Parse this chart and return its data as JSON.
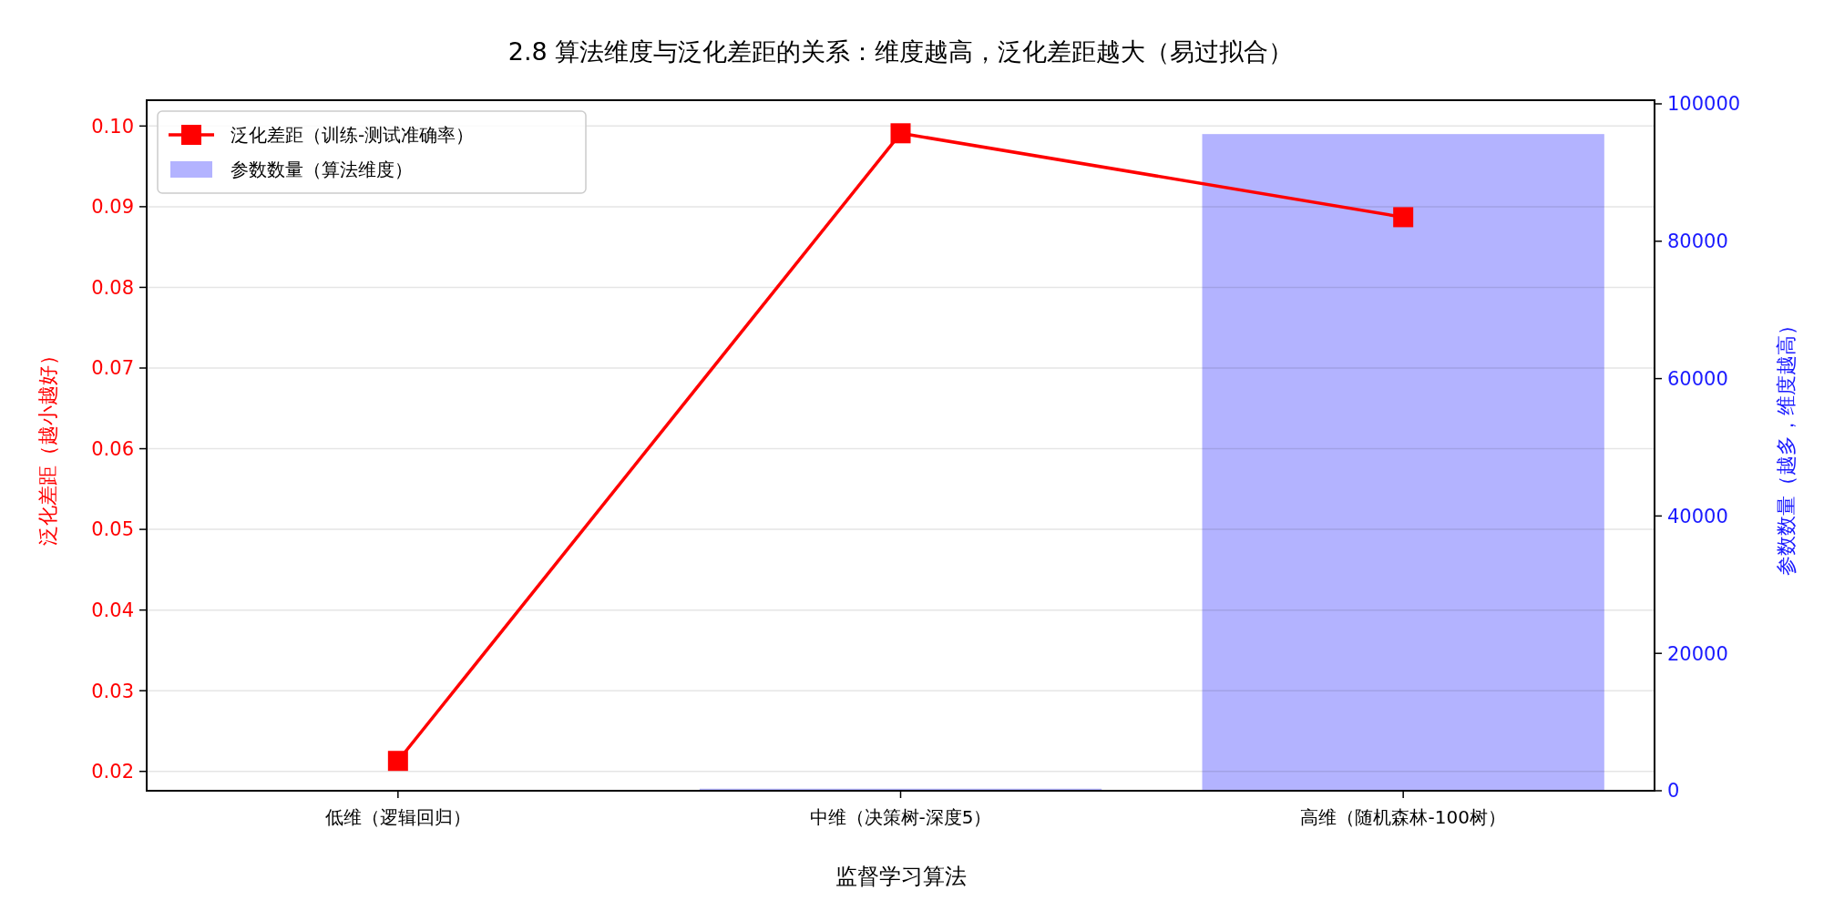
{
  "chart_data": {
    "type": "line",
    "title": "2.8 算法维度与泛化差距的关系：维度越高，泛化差距越大（易过拟合）",
    "xlabel": "监督学习算法",
    "ylabel": "泛化差距（越小越好）",
    "y2label": "参数数量（越多，维度越高）",
    "categories": [
      "低维（逻辑回归）",
      "中维（决策树-深度5）",
      "高维（随机森林-100树）"
    ],
    "series": [
      {
        "name": "泛化差距（训练-测试准确率）",
        "color": "#ff0000",
        "values": [
          0.0213,
          0.0991,
          0.0887
        ],
        "marker": "square"
      },
      {
        "name": "参数数量（算法维度）",
        "type": "bar",
        "axis": "y2",
        "color": "#b3b3ff",
        "values": [
          0,
          300,
          95600
        ]
      }
    ],
    "ylim": [
      0.0176,
      0.1032
    ],
    "yticks": [
      0.02,
      0.03,
      0.04,
      0.05,
      0.06,
      0.07,
      0.08,
      0.09,
      {
        "value": 0.1,
        "label": "0.10"
      }
    ],
    "y2lim": [
      0,
      100530
    ],
    "y2ticks": [
      0,
      20000,
      40000,
      60000,
      80000,
      100000
    ],
    "grid": "y",
    "legend": "top left",
    "line_style": "solid"
  }
}
